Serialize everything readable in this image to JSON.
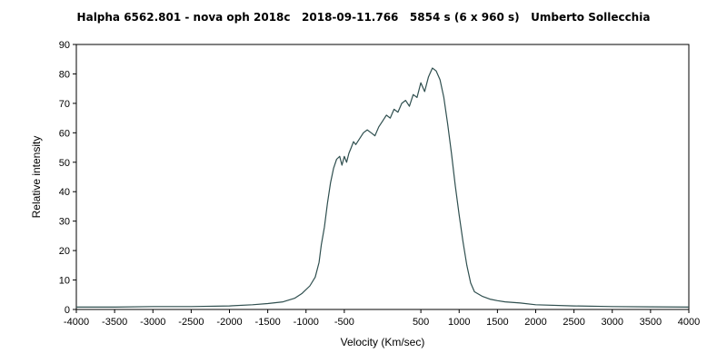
{
  "chart_data": {
    "type": "line",
    "title": "Halpha 6562.801 - nova oph 2018c   2018-09-11.766   5854 s (6 x 960 s)   Umberto Sollecchia",
    "xlabel": "Velocity (Km/sec)",
    "ylabel": "Relative intensity",
    "xlim": [
      -4000,
      4000
    ],
    "ylim": [
      0,
      90
    ],
    "xticks": [
      -4000,
      -3500,
      -3000,
      -2500,
      -2000,
      -1500,
      -1000,
      -500,
      500,
      1000,
      1500,
      2000,
      2500,
      3000,
      3500,
      4000
    ],
    "yticks": [
      0,
      10,
      20,
      30,
      40,
      50,
      60,
      70,
      80,
      90
    ],
    "grid": false,
    "line_color": "#2f4f4f",
    "series": [
      {
        "x": [
          -4000,
          -3500,
          -3000,
          -2500,
          -2000,
          -1700,
          -1500,
          -1300,
          -1150,
          -1050,
          -950,
          -880,
          -830,
          -800,
          -760,
          -720,
          -680,
          -640,
          -600,
          -560,
          -530,
          -500,
          -470,
          -440,
          -410,
          -380,
          -350,
          -300,
          -250,
          -200,
          -150,
          -100,
          -50,
          0,
          50,
          100,
          150,
          200,
          250,
          300,
          350,
          400,
          450,
          500,
          550,
          600,
          650,
          700,
          750,
          800,
          850,
          900,
          950,
          1000,
          1050,
          1100,
          1150,
          1200,
          1300,
          1400,
          1500,
          1600,
          1800,
          2000,
          2500,
          3000,
          3500,
          4000
        ],
        "y": [
          0.8,
          0.8,
          1.0,
          1.0,
          1.2,
          1.6,
          2.0,
          2.6,
          3.8,
          5.5,
          8.0,
          11.0,
          16.0,
          22.0,
          28.0,
          36.0,
          43.0,
          48.0,
          51.0,
          52.0,
          49.0,
          52.0,
          50.0,
          53.0,
          55.0,
          57.0,
          56.0,
          58.0,
          60.0,
          61.0,
          60.0,
          59.0,
          62.0,
          64.0,
          66.0,
          65.0,
          68.0,
          67.0,
          70.0,
          71.0,
          69.0,
          73.0,
          72.0,
          77.0,
          74.0,
          79.0,
          82.0,
          81.0,
          78.0,
          72.0,
          63.0,
          53.0,
          42.0,
          32.0,
          23.0,
          15.0,
          9.0,
          6.0,
          4.5,
          3.5,
          3.0,
          2.6,
          2.2,
          1.6,
          1.2,
          1.0,
          0.9,
          0.8
        ]
      }
    ]
  }
}
